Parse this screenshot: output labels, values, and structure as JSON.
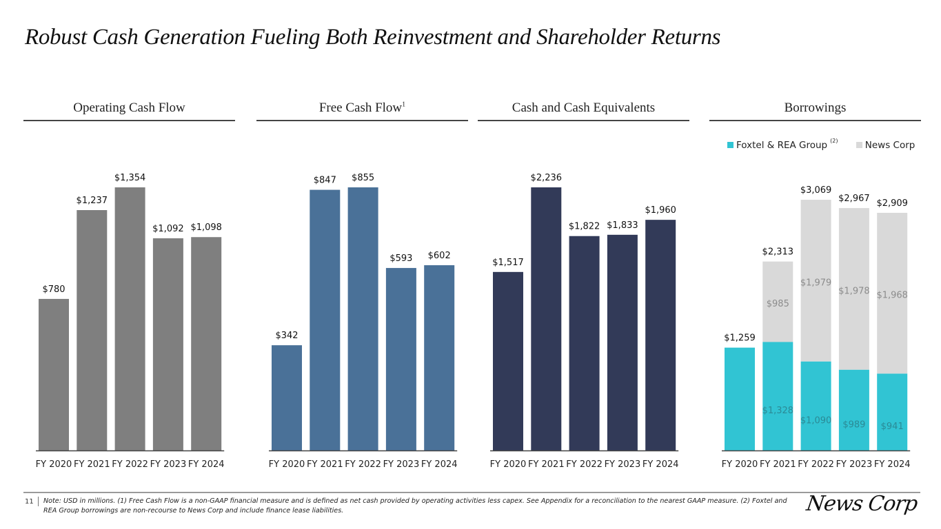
{
  "page": {
    "title": "Robust Cash Generation Fueling Both Reinvestment and Shareholder Returns",
    "page_number": "11",
    "footnote": "Note: USD in millions. (1) Free Cash Flow is a non-GAAP financial measure and is defined as net cash provided by operating activities less capex. See Appendix for a reconciliation to the nearest GAAP measure. (2) Foxtel and REA Group borrowings are non-recourse to News Corp and include finance lease liabilities.",
    "logo_text": "News Corp"
  },
  "chart_data": [
    {
      "type": "bar",
      "title": "Operating Cash Flow",
      "title_superscript": "",
      "categories": [
        "FY 2020",
        "FY 2021",
        "FY 2022",
        "FY 2023",
        "FY 2024"
      ],
      "values": [
        780,
        1237,
        1354,
        1092,
        1098
      ],
      "labels": [
        "$780",
        "$1,237",
        "$1,354",
        "$1,092",
        "$1,098"
      ],
      "color": "#7f7f7f",
      "xlabel": "",
      "ylabel": "USD in millions",
      "ylim": [
        0,
        1354
      ]
    },
    {
      "type": "bar",
      "title": "Free Cash Flow",
      "title_superscript": "1",
      "categories": [
        "FY 2020",
        "FY 2021",
        "FY 2022",
        "FY 2023",
        "FY 2024"
      ],
      "values": [
        342,
        847,
        855,
        593,
        602
      ],
      "labels": [
        "$342",
        "$847",
        "$855",
        "$593",
        "$602"
      ],
      "color": "#4a7198",
      "xlabel": "",
      "ylabel": "USD in millions",
      "ylim": [
        0,
        855
      ]
    },
    {
      "type": "bar",
      "title": "Cash and Cash Equivalents",
      "title_superscript": "",
      "categories": [
        "FY 2020",
        "FY 2021",
        "FY 2022",
        "FY 2023",
        "FY 2024"
      ],
      "values": [
        1517,
        2236,
        1822,
        1833,
        1960
      ],
      "labels": [
        "$1,517",
        "$2,236",
        "$1,822",
        "$1,833",
        "$1,960"
      ],
      "color": "#323a58",
      "xlabel": "",
      "ylabel": "USD in millions",
      "ylim": [
        0,
        2236
      ]
    },
    {
      "type": "bar",
      "stacked": true,
      "title": "Borrowings",
      "title_superscript": "",
      "categories": [
        "FY 2020",
        "FY 2021",
        "FY 2022",
        "FY 2023",
        "FY 2024"
      ],
      "legend_position": "top",
      "series": [
        {
          "name": "Foxtel & REA Group",
          "name_superscript": "(2)",
          "color": "#31c4d3",
          "values": [
            1259,
            1328,
            1090,
            989,
            941
          ],
          "labels": [
            "",
            "$1,328",
            "$1,090",
            "$989",
            "$941"
          ]
        },
        {
          "name": "News Corp",
          "name_superscript": "",
          "color": "#d9d9d9",
          "values": [
            0,
            985,
            1979,
            1978,
            1968
          ],
          "labels": [
            "",
            "$985",
            "$1,979",
            "$1,978",
            "$1,968"
          ]
        }
      ],
      "totals": [
        1259,
        2313,
        3069,
        2967,
        2909
      ],
      "total_labels": [
        "$1,259",
        "$2,313",
        "$3,069",
        "$2,967",
        "$2,909"
      ],
      "xlabel": "",
      "ylabel": "USD in millions",
      "ylim": [
        0,
        3069
      ]
    }
  ]
}
